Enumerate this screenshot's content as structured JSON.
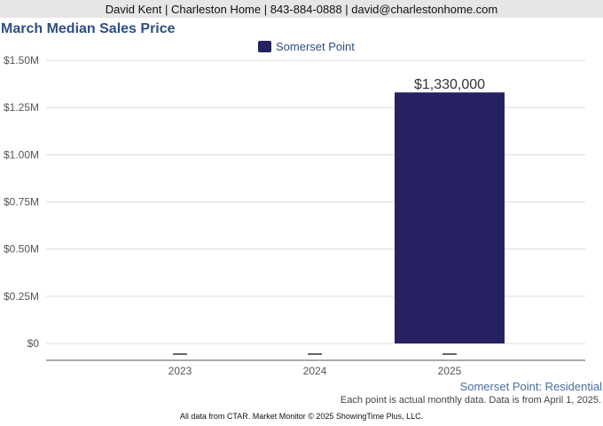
{
  "header": {
    "contact_line": "David Kent | Charleston Home | 843-884-0888 | david@charlestonhome.com"
  },
  "chart_data": {
    "type": "bar",
    "title": "March Median Sales Price",
    "categories": [
      "2023",
      "2024",
      "2025"
    ],
    "series": [
      {
        "name": "Somerset Point",
        "values": [
          null,
          0,
          1330000
        ],
        "color": "#262262"
      }
    ],
    "data_labels": [
      "",
      "",
      "$1,330,000"
    ],
    "ylim": [
      0,
      1500000
    ],
    "y_ticks": [
      0,
      250000,
      500000,
      750000,
      1000000,
      1250000,
      1500000
    ],
    "y_tick_labels": [
      "$0",
      "$0.25M",
      "$0.50M",
      "$0.75M",
      "$1.00M",
      "$1.25M",
      "$1.50M"
    ],
    "grid": true,
    "legend_position": "top-center"
  },
  "captions": {
    "series_caption": "Somerset Point: Residential",
    "note": "Each point is actual monthly data. Data is from April 1, 2025.",
    "footer": "All data from CTAR. Market Monitor © 2025 ShowingTime Plus, LLC."
  }
}
